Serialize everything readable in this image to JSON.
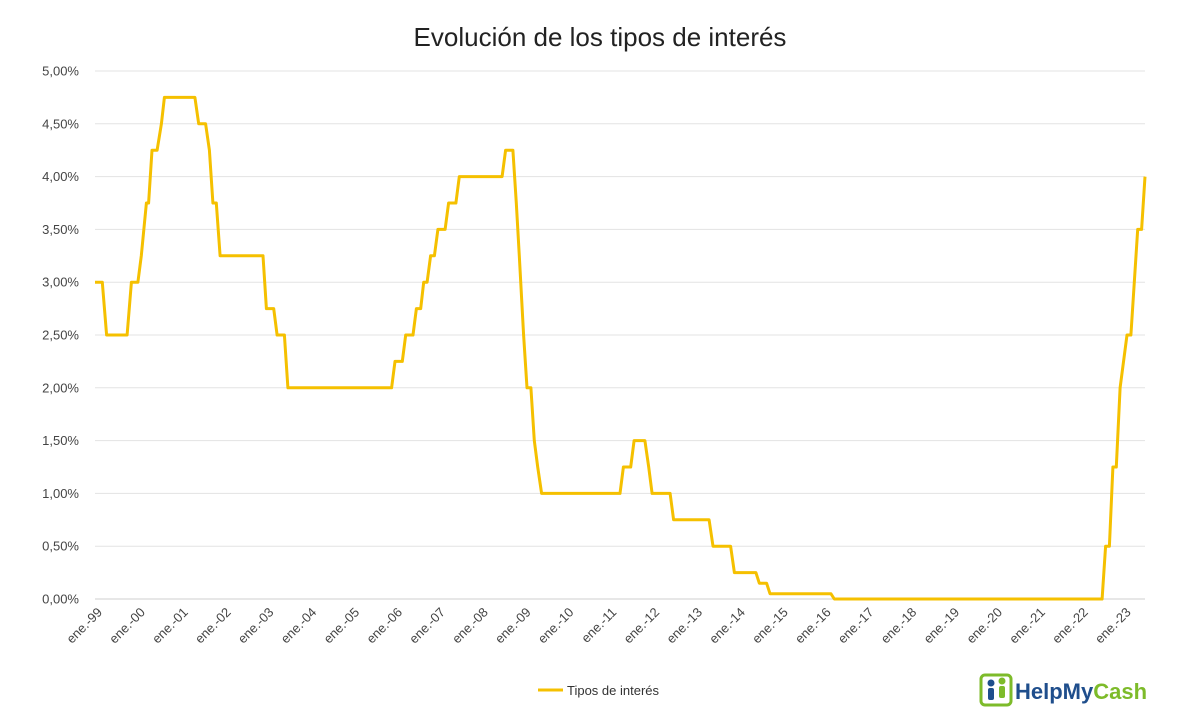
{
  "chart_data": {
    "type": "line",
    "title": "Evolución de los tipos de interés",
    "xlabel": "",
    "ylabel": "",
    "ylim": [
      0,
      5
    ],
    "yticks": [
      "0,00%",
      "0,50%",
      "1,00%",
      "1,50%",
      "2,00%",
      "2,50%",
      "3,00%",
      "3,50%",
      "4,00%",
      "4,50%",
      "5,00%"
    ],
    "xticks": [
      "ene.-99",
      "ene.-00",
      "ene.-01",
      "ene.-02",
      "ene.-03",
      "ene.-04",
      "ene.-05",
      "ene.-06",
      "ene.-07",
      "ene.-08",
      "ene.-09",
      "ene.-10",
      "ene.-11",
      "ene.-12",
      "ene.-13",
      "ene.-14",
      "ene.-15",
      "ene.-16",
      "ene.-17",
      "ene.-18",
      "ene.-19",
      "ene.-20",
      "ene.-21",
      "ene.-22",
      "ene.-23"
    ],
    "xlim": [
      1999.0,
      2023.5
    ],
    "grid": true,
    "legend_position": "bottom",
    "line_color": "#f5c000",
    "series": [
      {
        "name": "Tipos de interés",
        "points": [
          [
            1999.0,
            3.0
          ],
          [
            1999.17,
            3.0
          ],
          [
            1999.27,
            2.5
          ],
          [
            1999.75,
            2.5
          ],
          [
            1999.85,
            3.0
          ],
          [
            2000.0,
            3.0
          ],
          [
            2000.08,
            3.25
          ],
          [
            2000.2,
            3.75
          ],
          [
            2000.25,
            3.75
          ],
          [
            2000.33,
            4.25
          ],
          [
            2000.45,
            4.25
          ],
          [
            2000.55,
            4.5
          ],
          [
            2000.62,
            4.75
          ],
          [
            2001.33,
            4.75
          ],
          [
            2001.42,
            4.5
          ],
          [
            2001.58,
            4.5
          ],
          [
            2001.67,
            4.25
          ],
          [
            2001.75,
            3.75
          ],
          [
            2001.83,
            3.75
          ],
          [
            2001.92,
            3.25
          ],
          [
            2002.92,
            3.25
          ],
          [
            2003.0,
            2.75
          ],
          [
            2003.17,
            2.75
          ],
          [
            2003.25,
            2.5
          ],
          [
            2003.42,
            2.5
          ],
          [
            2003.5,
            2.0
          ],
          [
            2005.92,
            2.0
          ],
          [
            2006.0,
            2.25
          ],
          [
            2006.17,
            2.25
          ],
          [
            2006.25,
            2.5
          ],
          [
            2006.42,
            2.5
          ],
          [
            2006.5,
            2.75
          ],
          [
            2006.6,
            2.75
          ],
          [
            2006.67,
            3.0
          ],
          [
            2006.75,
            3.0
          ],
          [
            2006.83,
            3.25
          ],
          [
            2006.92,
            3.25
          ],
          [
            2007.0,
            3.5
          ],
          [
            2007.17,
            3.5
          ],
          [
            2007.25,
            3.75
          ],
          [
            2007.42,
            3.75
          ],
          [
            2007.5,
            4.0
          ],
          [
            2008.5,
            4.0
          ],
          [
            2008.58,
            4.25
          ],
          [
            2008.75,
            4.25
          ],
          [
            2008.83,
            3.75
          ],
          [
            2008.9,
            3.25
          ],
          [
            2009.0,
            2.5
          ],
          [
            2009.08,
            2.0
          ],
          [
            2009.17,
            2.0
          ],
          [
            2009.25,
            1.5
          ],
          [
            2009.33,
            1.25
          ],
          [
            2009.42,
            1.0
          ],
          [
            2011.25,
            1.0
          ],
          [
            2011.33,
            1.25
          ],
          [
            2011.5,
            1.25
          ],
          [
            2011.58,
            1.5
          ],
          [
            2011.83,
            1.5
          ],
          [
            2011.92,
            1.25
          ],
          [
            2012.0,
            1.0
          ],
          [
            2012.42,
            1.0
          ],
          [
            2012.5,
            0.75
          ],
          [
            2013.33,
            0.75
          ],
          [
            2013.42,
            0.5
          ],
          [
            2013.83,
            0.5
          ],
          [
            2013.92,
            0.25
          ],
          [
            2014.42,
            0.25
          ],
          [
            2014.5,
            0.15
          ],
          [
            2014.67,
            0.15
          ],
          [
            2014.75,
            0.05
          ],
          [
            2016.17,
            0.05
          ],
          [
            2016.25,
            0.0
          ],
          [
            2022.5,
            0.0
          ],
          [
            2022.58,
            0.5
          ],
          [
            2022.67,
            0.5
          ],
          [
            2022.75,
            1.25
          ],
          [
            2022.83,
            1.25
          ],
          [
            2022.92,
            2.0
          ],
          [
            2023.08,
            2.5
          ],
          [
            2023.17,
            2.5
          ],
          [
            2023.25,
            3.0
          ],
          [
            2023.33,
            3.5
          ],
          [
            2023.42,
            3.5
          ],
          [
            2023.5,
            4.0
          ]
        ]
      }
    ]
  },
  "logo": {
    "text_help": "HelpMy",
    "text_cash": "Cash",
    "color_blue": "#1f4e8c",
    "color_green": "#7dbb2a"
  }
}
